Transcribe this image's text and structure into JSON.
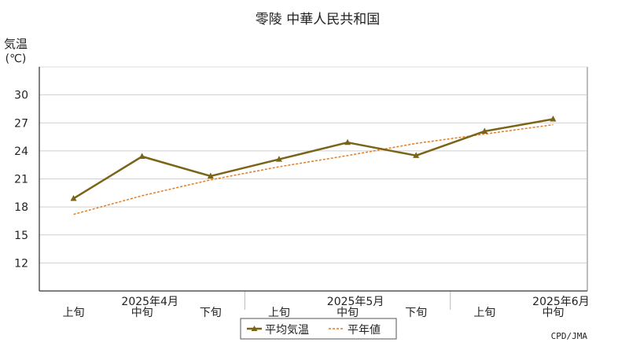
{
  "chart_data": {
    "type": "line",
    "title": "零陵  中華人民共和国",
    "ylabel": "気温",
    "yunit": "(℃)",
    "ylim": [
      9,
      33
    ],
    "yticks": [
      12,
      15,
      18,
      21,
      24,
      27,
      30
    ],
    "grid": true,
    "categories": [
      "上旬",
      "中旬",
      "下旬",
      "上旬",
      "中旬",
      "下旬",
      "上旬",
      "中旬"
    ],
    "month_labels": [
      {
        "label": "2025年4月",
        "category_index": 1
      },
      {
        "label": "2025年5月",
        "category_index": 4
      },
      {
        "label": "2025年6月",
        "category_index": 7
      }
    ],
    "series": [
      {
        "name": "平均気温",
        "values": [
          18.9,
          23.4,
          21.3,
          23.1,
          24.9,
          23.5,
          26.1,
          27.4
        ],
        "color": "#7a6418",
        "marker": "triangle",
        "style": "solid"
      },
      {
        "name": "平年値",
        "values": [
          17.2,
          19.2,
          20.9,
          22.3,
          23.5,
          24.8,
          25.8,
          26.8
        ],
        "color": "#e57c23",
        "style": "dotted"
      }
    ],
    "legend_position": "bottom-center",
    "credit": "CPD/JMA"
  }
}
